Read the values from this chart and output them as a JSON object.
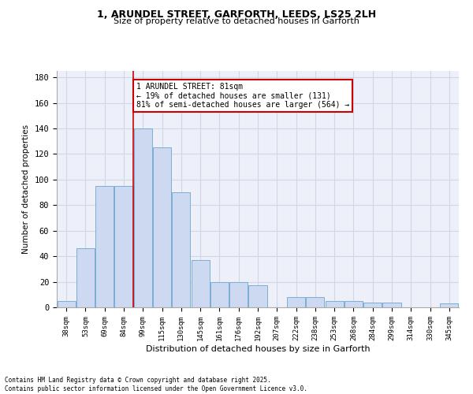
{
  "title1": "1, ARUNDEL STREET, GARFORTH, LEEDS, LS25 2LH",
  "title2": "Size of property relative to detached houses in Garforth",
  "xlabel": "Distribution of detached houses by size in Garforth",
  "ylabel": "Number of detached properties",
  "categories": [
    "38sqm",
    "53sqm",
    "69sqm",
    "84sqm",
    "99sqm",
    "115sqm",
    "130sqm",
    "145sqm",
    "161sqm",
    "176sqm",
    "192sqm",
    "207sqm",
    "222sqm",
    "238sqm",
    "253sqm",
    "268sqm",
    "284sqm",
    "299sqm",
    "314sqm",
    "330sqm",
    "345sqm"
  ],
  "values": [
    5,
    46,
    95,
    95,
    140,
    125,
    90,
    37,
    20,
    20,
    17,
    0,
    8,
    8,
    5,
    5,
    4,
    4,
    0,
    0,
    3
  ],
  "bar_color": "#ccd9f0",
  "bar_edge_color": "#7aadd4",
  "annotation_text": "1 ARUNDEL STREET: 81sqm\n← 19% of detached houses are smaller (131)\n81% of semi-detached houses are larger (564) →",
  "annotation_box_color": "#ffffff",
  "annotation_box_edge": "#cc0000",
  "property_line_color": "#cc0000",
  "property_line_x": 3.5,
  "grid_color": "#d0d8e8",
  "background_color": "#edf0f8",
  "footer_text": "Contains HM Land Registry data © Crown copyright and database right 2025.\nContains public sector information licensed under the Open Government Licence v3.0.",
  "ylim": [
    0,
    185
  ],
  "yticks": [
    0,
    20,
    40,
    60,
    80,
    100,
    120,
    140,
    160,
    180
  ]
}
